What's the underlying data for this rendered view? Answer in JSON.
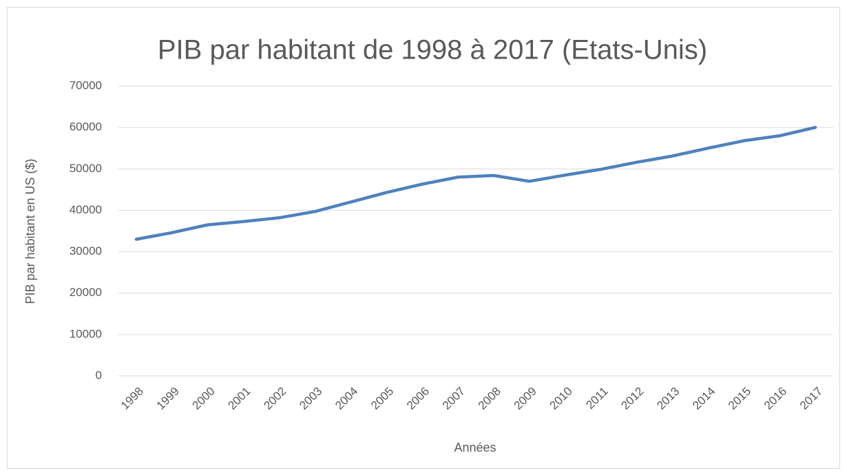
{
  "chart_data": {
    "type": "line",
    "title": "PIB par habitant de 1998 à 2017 (Etats-Unis)",
    "x_label": "Années",
    "y_label": "PIB par habitant en US ($)",
    "categories": [
      "1998",
      "1999",
      "2000",
      "2001",
      "2002",
      "2003",
      "2004",
      "2005",
      "2006",
      "2007",
      "2008",
      "2009",
      "2010",
      "2011",
      "2012",
      "2013",
      "2014",
      "2015",
      "2016",
      "2017"
    ],
    "values": [
      33000,
      34600,
      36500,
      37300,
      38200,
      39700,
      42000,
      44300,
      46300,
      48000,
      48400,
      47000,
      48500,
      49900,
      51600,
      53100,
      55000,
      56800,
      58000,
      60000
    ],
    "color": "#4f81bd",
    "ylim": [
      0,
      70000
    ],
    "yticks": [
      0,
      10000,
      20000,
      30000,
      40000,
      50000,
      60000,
      70000
    ],
    "grid": true
  }
}
